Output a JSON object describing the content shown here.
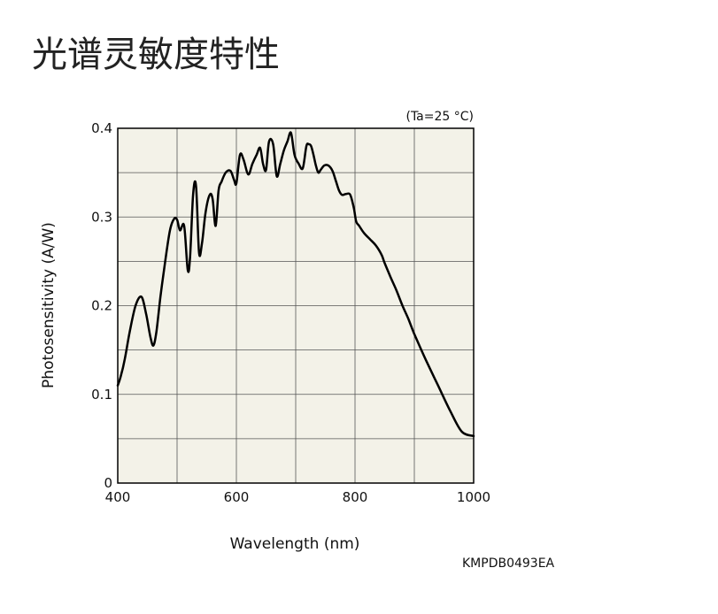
{
  "page": {
    "title": "光谱灵敏度特性",
    "figure_code": "KMPDB0493EA"
  },
  "chart_data": {
    "type": "line",
    "title": "",
    "xlabel": "Wavelength (nm)",
    "ylabel": "Photosensitivity (A/W)",
    "condition": "(Ta=25 °C)",
    "xlim": [
      400,
      1000
    ],
    "ylim": [
      0,
      0.4
    ],
    "x_ticks": [
      400,
      600,
      800,
      1000
    ],
    "x_tick_labels": [
      "400",
      "600",
      "800",
      "1000"
    ],
    "y_ticks": [
      0,
      0.1,
      0.2,
      0.3,
      0.4
    ],
    "y_tick_labels": [
      "0",
      "0.1",
      "0.2",
      "0.3",
      "0.4"
    ],
    "x_grid_step": 100,
    "y_grid_step": 0.05,
    "grid": true,
    "colors": {
      "plot_background": "#f3f2e8",
      "grid": "#555555",
      "line": "#000000"
    },
    "series": [
      {
        "x": [
          400,
          405,
          412,
          420,
          430,
          440,
          448,
          455,
          460,
          465,
          472,
          480,
          488,
          495,
          500,
          505,
          512,
          518,
          522,
          527,
          532,
          537,
          542,
          548,
          555,
          560,
          565,
          570,
          575,
          582,
          590,
          596,
          600,
          606,
          612,
          620,
          627,
          634,
          640,
          645,
          650,
          655,
          662,
          668,
          674,
          680,
          686,
          692,
          698,
          705,
          712,
          718,
          722,
          726,
          730,
          734,
          738,
          742,
          748,
          755,
          762,
          768,
          773,
          778,
          785,
          792,
          798,
          802,
          807,
          815,
          825,
          835,
          845,
          850,
          860,
          870,
          880,
          890,
          900,
          920,
          940,
          960,
          980,
          1000
        ],
        "values": [
          0.11,
          0.12,
          0.14,
          0.17,
          0.2,
          0.21,
          0.19,
          0.165,
          0.155,
          0.17,
          0.21,
          0.25,
          0.285,
          0.298,
          0.297,
          0.285,
          0.29,
          0.24,
          0.255,
          0.325,
          0.335,
          0.26,
          0.27,
          0.305,
          0.325,
          0.32,
          0.29,
          0.33,
          0.34,
          0.35,
          0.352,
          0.342,
          0.338,
          0.37,
          0.365,
          0.348,
          0.36,
          0.37,
          0.378,
          0.36,
          0.353,
          0.385,
          0.382,
          0.346,
          0.36,
          0.375,
          0.385,
          0.395,
          0.37,
          0.36,
          0.355,
          0.38,
          0.382,
          0.38,
          0.37,
          0.358,
          0.35,
          0.353,
          0.358,
          0.358,
          0.352,
          0.34,
          0.33,
          0.325,
          0.326,
          0.325,
          0.31,
          0.295,
          0.29,
          0.282,
          0.275,
          0.268,
          0.257,
          0.248,
          0.232,
          0.217,
          0.2,
          0.185,
          0.168,
          0.138,
          0.11,
          0.082,
          0.058,
          0.053
        ]
      }
    ]
  }
}
